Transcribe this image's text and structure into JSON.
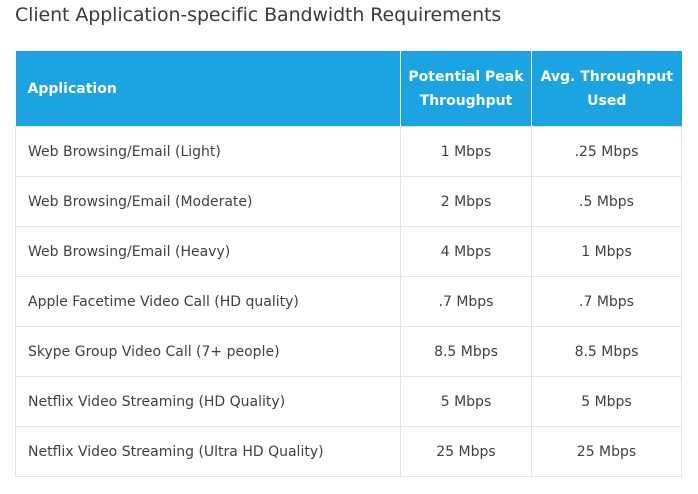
{
  "page": {
    "title": "Client Application-specific Bandwidth Requirements"
  },
  "table": {
    "header_color": "#1ca4e2",
    "headers": {
      "application": "Application",
      "peak_line1": "Potential Peak",
      "peak_line2": "Throughput",
      "avg_line1": "Avg. Throughput",
      "avg_line2": "Used"
    },
    "rows": [
      {
        "application": "Web Browsing/Email (Light)",
        "peak": "1 Mbps",
        "avg": ".25 Mbps"
      },
      {
        "application": "Web Browsing/Email (Moderate)",
        "peak": "2 Mbps",
        "avg": ".5 Mbps"
      },
      {
        "application": "Web Browsing/Email (Heavy)",
        "peak": "4 Mbps",
        "avg": "1 Mbps"
      },
      {
        "application": "Apple Facetime Video Call (HD quality)",
        "peak": ".7 Mbps",
        "avg": ".7 Mbps"
      },
      {
        "application": "Skype Group Video Call (7+ people)",
        "peak": "8.5 Mbps",
        "avg": "8.5 Mbps"
      },
      {
        "application": "Netflix Video Streaming (HD Quality)",
        "peak": "5 Mbps",
        "avg": "5 Mbps"
      },
      {
        "application": "Netflix Video Streaming (Ultra HD Quality)",
        "peak": "25 Mbps",
        "avg": "25 Mbps"
      }
    ]
  }
}
